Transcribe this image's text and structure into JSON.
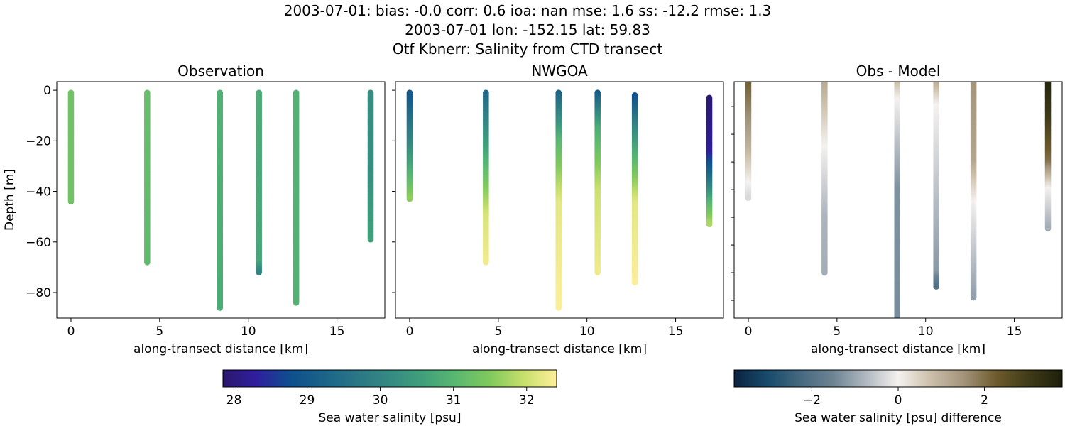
{
  "chart_data": {
    "title_lines": [
      "2003-07-01: bias: -0.0  corr: 0.6  ioa: nan  mse: 1.6  ss: -12.2  rmse: 1.3",
      "2003-07-01 lon: -152.15 lat: 59.83",
      "Otf Kbnerr: Salinity from CTD transect"
    ],
    "type": "scatter",
    "ylabel": "Depth [m]",
    "xlabel": "along-transect distance [km]",
    "xlim": [
      -0.8,
      17.7
    ],
    "xticks": [
      0,
      5,
      10,
      15
    ],
    "panels": [
      {
        "title": "Observation",
        "ylim": [
          -90.1,
          3.4
        ],
        "yticks": [
          0,
          -20,
          -40,
          -60,
          -80
        ],
        "show_ytick_labels": true,
        "colormap": "salinity",
        "stations": [
          {
            "x": 0,
            "top": -1,
            "bottom": -44,
            "profile": [
              [
                -1,
                31.3
              ],
              [
                -44,
                31.3
              ]
            ]
          },
          {
            "x": 4.3,
            "top": -1,
            "bottom": -68,
            "profile": [
              [
                -1,
                31.2
              ],
              [
                -68,
                31.1
              ]
            ]
          },
          {
            "x": 8.4,
            "top": -1,
            "bottom": -86,
            "profile": [
              [
                -1,
                30.9
              ],
              [
                -86,
                30.8
              ]
            ]
          },
          {
            "x": 10.6,
            "top": -1,
            "bottom": -72,
            "profile": [
              [
                -1,
                30.8
              ],
              [
                -68,
                30.7
              ],
              [
                -72,
                30.0
              ]
            ]
          },
          {
            "x": 12.7,
            "top": -1,
            "bottom": -84,
            "profile": [
              [
                -1,
                30.9
              ],
              [
                -84,
                30.9
              ]
            ]
          },
          {
            "x": 16.9,
            "top": -1,
            "bottom": -59,
            "profile": [
              [
                -1,
                30.2
              ],
              [
                -30,
                30.2
              ],
              [
                -59,
                30.6
              ]
            ]
          }
        ]
      },
      {
        "title": "NWGOA",
        "ylim": [
          -90.1,
          3.4
        ],
        "yticks": [
          0,
          -20,
          -40,
          -60,
          -80
        ],
        "show_ytick_labels": false,
        "colormap": "salinity",
        "stations": [
          {
            "x": 0,
            "top": -1,
            "bottom": -43,
            "profile": [
              [
                -1,
                28.9
              ],
              [
                -20,
                30.0
              ],
              [
                -43,
                31.6
              ]
            ]
          },
          {
            "x": 4.3,
            "top": -1,
            "bottom": -68,
            "profile": [
              [
                -1,
                29.3
              ],
              [
                -30,
                31.0
              ],
              [
                -50,
                32.1
              ],
              [
                -68,
                32.3
              ]
            ]
          },
          {
            "x": 8.4,
            "top": -1,
            "bottom": -86,
            "profile": [
              [
                -1,
                29.2
              ],
              [
                -20,
                31.0
              ],
              [
                -45,
                32.2
              ],
              [
                -86,
                32.4
              ]
            ]
          },
          {
            "x": 10.6,
            "top": -1,
            "bottom": -72,
            "profile": [
              [
                -1,
                29.0
              ],
              [
                -15,
                30.8
              ],
              [
                -40,
                32.0
              ],
              [
                -72,
                32.3
              ]
            ]
          },
          {
            "x": 12.7,
            "top": -2,
            "bottom": -76,
            "profile": [
              [
                -2,
                28.8
              ],
              [
                -20,
                30.5
              ],
              [
                -45,
                32.2
              ],
              [
                -76,
                32.4
              ]
            ]
          },
          {
            "x": 16.9,
            "top": -3,
            "bottom": -53,
            "profile": [
              [
                -3,
                27.9
              ],
              [
                -25,
                28.3
              ],
              [
                -35,
                29.5
              ],
              [
                -45,
                31.0
              ],
              [
                -53,
                31.8
              ]
            ]
          }
        ]
      },
      {
        "title": "Obs - Model",
        "ylim": [
          -86.4,
          -1.0
        ],
        "yticks": [
          -10,
          -20,
          -30,
          -40,
          -50,
          -60,
          -70,
          -80
        ],
        "show_ytick_labels": false,
        "colormap": "difference",
        "stations": [
          {
            "x": 0,
            "top": 0,
            "bottom": -43,
            "profile": [
              [
                0,
                2.3
              ],
              [
                -25,
                1.0
              ],
              [
                -38,
                0.0
              ],
              [
                -43,
                -0.3
              ]
            ]
          },
          {
            "x": 4.3,
            "top": 0,
            "bottom": -70,
            "profile": [
              [
                0,
                1.2
              ],
              [
                -25,
                0.0
              ],
              [
                -50,
                -0.8
              ],
              [
                -70,
                -0.9
              ]
            ]
          },
          {
            "x": 8.4,
            "top": 0,
            "bottom": -90,
            "profile": [
              [
                0,
                1.0
              ],
              [
                -8,
                0.0
              ],
              [
                -40,
                -1.3
              ],
              [
                -90,
                -1.4
              ]
            ]
          },
          {
            "x": 10.6,
            "top": 0,
            "bottom": -75,
            "profile": [
              [
                0,
                1.3
              ],
              [
                -10,
                0.0
              ],
              [
                -70,
                -1.2
              ],
              [
                -75,
                -2.0
              ]
            ]
          },
          {
            "x": 12.7,
            "top": 0,
            "bottom": -79,
            "profile": [
              [
                0,
                1.5
              ],
              [
                -30,
                1.2
              ],
              [
                -45,
                0.0
              ],
              [
                -79,
                -1.1
              ]
            ]
          },
          {
            "x": 16.9,
            "top": -1,
            "bottom": -54,
            "profile": [
              [
                -1,
                3.6
              ],
              [
                -15,
                3.0
              ],
              [
                -30,
                2.0
              ],
              [
                -40,
                0.0
              ],
              [
                -54,
                -0.9
              ]
            ]
          }
        ]
      }
    ],
    "colorbars": [
      {
        "label": "Sea water salinity [psu]",
        "range": [
          27.85,
          32.41
        ],
        "ticks": [
          28,
          29,
          30,
          31,
          32
        ],
        "colormap": "salinity"
      },
      {
        "label": "Sea water salinity [psu] difference",
        "range": [
          -3.8,
          3.8
        ],
        "ticks": [
          -2,
          0,
          2
        ],
        "tick_labels": [
          "−2",
          "0",
          "2"
        ],
        "colormap": "difference"
      }
    ],
    "colormaps": {
      "salinity": [
        "#2a186c",
        "#2f1e9e",
        "#0e4e8e",
        "#1a6388",
        "#2a7686",
        "#358a82",
        "#40a07a",
        "#5bb871",
        "#80c95c",
        "#c6df6c",
        "#fdee99"
      ],
      "difference": [
        "#0b2240",
        "#174a6b",
        "#45687f",
        "#6c8393",
        "#b0b7bf",
        "#f4f1ef",
        "#cbbfa9",
        "#a2937a",
        "#6d5a2c",
        "#3e3a18",
        "#1d1f0c"
      ]
    }
  }
}
